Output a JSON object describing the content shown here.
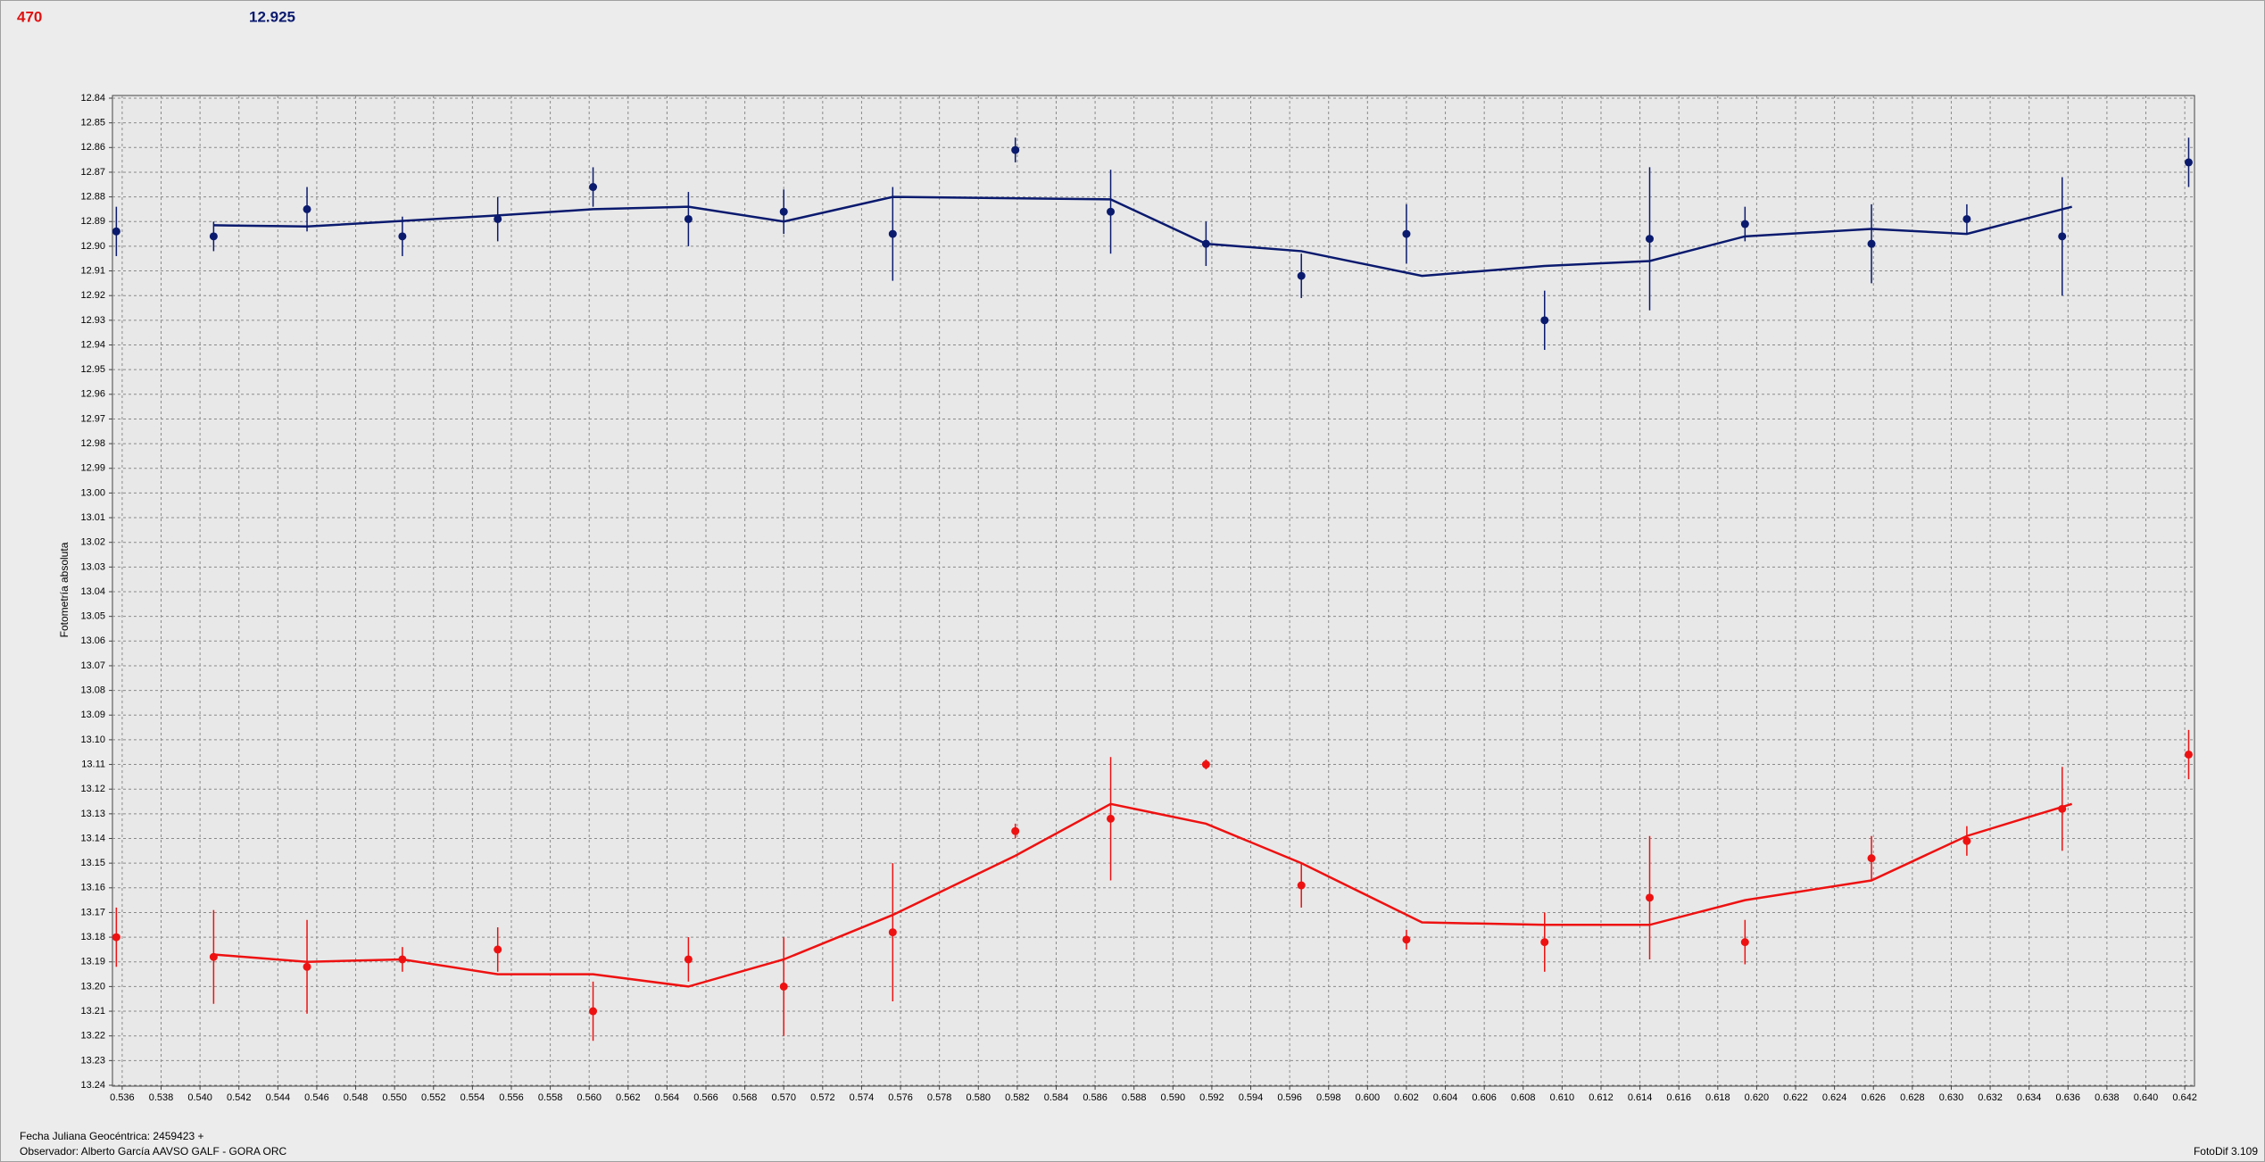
{
  "header": {
    "frame": "470",
    "magnitude": "12.925"
  },
  "footer": {
    "date": "Fecha Juliana Geocéntrica: 2459423 +",
    "observer": "Observador: Alberto García AAVSO GALF - GORA ORC",
    "version": "FotoDif 3.109"
  },
  "chart_data": {
    "type": "errorbar",
    "ylabel": "Fotometría absoluta",
    "xlim": [
      0.5355,
      0.6425
    ],
    "ylim": [
      12.84,
      13.24
    ],
    "y_inverted": true,
    "grid": true,
    "xticks": [
      0.536,
      0.538,
      {
        "value": 0.54,
        "label": "0.540"
      },
      0.542,
      0.544,
      0.546,
      0.548,
      {
        "value": 0.55,
        "label": "0.550"
      },
      0.552,
      0.554,
      0.556,
      0.558,
      {
        "value": 0.56,
        "label": "0.560"
      },
      0.562,
      0.564,
      0.566,
      0.568,
      {
        "value": 0.57,
        "label": "0.570"
      },
      0.572,
      0.574,
      0.576,
      0.578,
      {
        "value": 0.58,
        "label": "0.580"
      },
      0.582,
      0.584,
      0.586,
      0.588,
      {
        "value": 0.59,
        "label": "0.590"
      },
      0.592,
      0.594,
      0.596,
      0.598,
      {
        "value": 0.6,
        "label": "0.600"
      },
      0.602,
      0.604,
      0.606,
      0.608,
      {
        "value": 0.61,
        "label": "0.610"
      },
      0.612,
      0.614,
      0.616,
      0.618,
      {
        "value": 0.62,
        "label": "0.620"
      },
      0.622,
      0.624,
      0.626,
      0.628,
      {
        "value": 0.63,
        "label": "0.630"
      },
      0.632,
      0.634,
      0.636,
      0.638,
      {
        "value": 0.64,
        "label": "0.640"
      },
      0.642
    ],
    "yticks": [
      12.84,
      12.85,
      12.86,
      12.87,
      12.88,
      12.89,
      {
        "value": 12.9,
        "label": "12.90"
      },
      12.91,
      12.92,
      12.93,
      12.94,
      12.95,
      12.96,
      12.97,
      12.98,
      12.99,
      {
        "value": 13.0,
        "label": "13.00"
      },
      13.01,
      13.02,
      13.03,
      13.04,
      13.05,
      13.06,
      13.07,
      13.08,
      13.09,
      {
        "value": 13.1,
        "label": "13.10"
      },
      13.11,
      13.12,
      13.13,
      13.14,
      13.15,
      13.16,
      13.17,
      13.18,
      13.19,
      {
        "value": 13.2,
        "label": "13.20"
      },
      13.21,
      13.22,
      13.23,
      13.24
    ],
    "series": [
      {
        "color": "#0a1a6e",
        "x": [
          0.5357,
          0.5407,
          0.5455,
          0.5504,
          0.5553,
          0.5602,
          0.5651,
          0.57,
          0.5756,
          0.5819,
          0.5868,
          0.5917,
          0.5966,
          0.602,
          0.6091,
          0.6145,
          0.6194,
          0.6259,
          0.6308,
          0.6357,
          0.6422
        ],
        "values": [
          12.894,
          12.896,
          12.885,
          12.896,
          12.889,
          12.876,
          12.889,
          12.886,
          12.895,
          12.861,
          12.886,
          12.899,
          12.912,
          12.895,
          12.93,
          12.897,
          12.891,
          12.899,
          12.889,
          12.896,
          12.866
        ],
        "errors": [
          0.01,
          0.006,
          0.009,
          0.008,
          0.009,
          0.008,
          0.011,
          0.009,
          0.019,
          0.005,
          0.017,
          0.009,
          0.009,
          0.012,
          0.012,
          0.029,
          0.007,
          0.016,
          0.006,
          0.024,
          0.01
        ],
        "fit_x": [
          0.5407,
          0.5455,
          0.5553,
          0.5602,
          0.5651,
          0.57,
          0.5756,
          0.5868,
          0.5917,
          0.5966,
          0.6028,
          0.6091,
          0.6145,
          0.6194,
          0.6259,
          0.6308,
          0.6362
        ],
        "fit_values": [
          12.8915,
          12.892,
          12.8875,
          12.885,
          12.884,
          12.89,
          12.88,
          12.881,
          12.899,
          12.902,
          12.912,
          12.908,
          12.906,
          12.896,
          12.893,
          12.895,
          12.884
        ]
      },
      {
        "color": "#ee1111",
        "x": [
          0.5357,
          0.5407,
          0.5455,
          0.5504,
          0.5553,
          0.5602,
          0.5651,
          0.57,
          0.5756,
          0.5819,
          0.5868,
          0.5917,
          0.5966,
          0.602,
          0.6091,
          0.6145,
          0.6194,
          0.6259,
          0.6308,
          0.6357,
          0.6422
        ],
        "values": [
          13.18,
          13.188,
          13.192,
          13.189,
          13.185,
          13.21,
          13.189,
          13.2,
          13.178,
          13.137,
          13.132,
          13.11,
          13.159,
          13.181,
          13.182,
          13.164,
          13.182,
          13.148,
          13.141,
          13.128,
          13.106
        ],
        "errors": [
          0.012,
          0.019,
          0.019,
          0.005,
          0.009,
          0.012,
          0.009,
          0.02,
          0.028,
          0.003,
          0.025,
          0.002,
          0.009,
          0.004,
          0.012,
          0.025,
          0.009,
          0.009,
          0.006,
          0.017,
          0.01
        ],
        "fit_x": [
          0.5407,
          0.5455,
          0.5504,
          0.5553,
          0.5602,
          0.5651,
          0.57,
          0.5756,
          0.5819,
          0.5868,
          0.5917,
          0.5966,
          0.6028,
          0.6091,
          0.6145,
          0.6194,
          0.6259,
          0.6308,
          0.6362
        ],
        "fit_values": [
          13.187,
          13.19,
          13.189,
          13.195,
          13.195,
          13.2,
          13.189,
          13.171,
          13.147,
          13.126,
          13.134,
          13.15,
          13.174,
          13.175,
          13.175,
          13.165,
          13.157,
          13.139,
          13.126
        ]
      }
    ]
  }
}
